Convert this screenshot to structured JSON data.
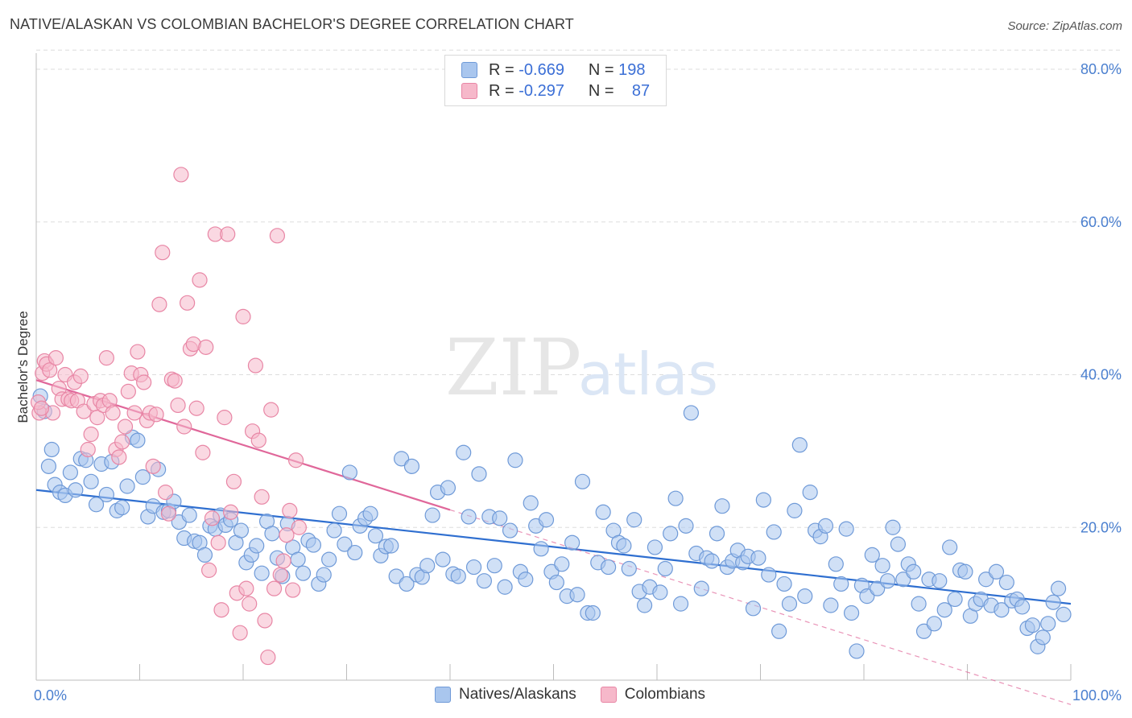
{
  "header": {
    "title": "NATIVE/ALASKAN VS COLOMBIAN BACHELOR'S DEGREE CORRELATION CHART",
    "source": "Source: ZipAtlas.com"
  },
  "watermark": {
    "zip": "ZIP",
    "atlas": "atlas"
  },
  "legend": {
    "rows": [
      {
        "r_label": "R =",
        "r_value": "-0.669",
        "n_label": "N =",
        "n_value": "198",
        "color": "#a9c6ee"
      },
      {
        "r_label": "R =",
        "r_value": "-0.297",
        "n_label": "N =",
        "n_value": "87",
        "color": "#f6b8ca"
      }
    ]
  },
  "bottom_legend": [
    {
      "label": "Natives/Alaskans",
      "color": "#a9c6ee"
    },
    {
      "label": "Colombians",
      "color": "#f6b8ca"
    }
  ],
  "chart_data": {
    "type": "scatter",
    "title": "NATIVE/ALASKAN VS COLOMBIAN BACHELOR'S DEGREE CORRELATION CHART",
    "xlabel": "",
    "ylabel": "Bachelor's Degree",
    "xlim": [
      0,
      100
    ],
    "ylim": [
      0,
      85
    ],
    "x_tick_labels": [
      "0.0%",
      "100.0%"
    ],
    "y_ticks": [
      20,
      40,
      60,
      80
    ],
    "y_tick_labels": [
      "20.0%",
      "40.0%",
      "60.0%",
      "80.0%"
    ],
    "grid": true,
    "legend_position": "top-center",
    "series": [
      {
        "name": "Natives/Alaskans",
        "color": "#a9c6ee",
        "stroke": "#6f9ad8",
        "trend": {
          "x": [
            0,
            100
          ],
          "y": [
            24.9,
            10.0
          ],
          "color": "#2f6fd0"
        },
        "points": [
          [
            1.2,
            28
          ],
          [
            1.8,
            25.6
          ],
          [
            2.3,
            24.6
          ],
          [
            2.8,
            24.2
          ],
          [
            3.3,
            27.2
          ],
          [
            3.8,
            24.9
          ],
          [
            4.3,
            29
          ],
          [
            4.8,
            28.8
          ],
          [
            5.3,
            26
          ],
          [
            5.8,
            23
          ],
          [
            6.3,
            28.3
          ],
          [
            6.8,
            24.3
          ],
          [
            7.3,
            28.6
          ],
          [
            7.8,
            22.2
          ],
          [
            8.3,
            22.6
          ],
          [
            8.8,
            25.4
          ],
          [
            9.3,
            31.8
          ],
          [
            9.8,
            31.4
          ],
          [
            10.3,
            26.6
          ],
          [
            10.8,
            21.4
          ],
          [
            11.3,
            22.8
          ],
          [
            11.8,
            27.6
          ],
          [
            12.3,
            22
          ],
          [
            12.8,
            22.2
          ],
          [
            13.3,
            23.4
          ],
          [
            13.8,
            20.7
          ],
          [
            14.3,
            18.6
          ],
          [
            14.8,
            21.6
          ],
          [
            15.3,
            18.2
          ],
          [
            15.8,
            18
          ],
          [
            16.3,
            16.4
          ],
          [
            16.8,
            20.2
          ],
          [
            17.3,
            19.8
          ],
          [
            17.8,
            21.6
          ],
          [
            18.3,
            20.3
          ],
          [
            18.8,
            21
          ],
          [
            19.3,
            18
          ],
          [
            19.8,
            19.6
          ],
          [
            20.3,
            15.4
          ],
          [
            20.8,
            16.4
          ],
          [
            21.3,
            17.6
          ],
          [
            21.8,
            14
          ],
          [
            22.3,
            20.8
          ],
          [
            22.8,
            19.2
          ],
          [
            23.3,
            16
          ],
          [
            23.8,
            13.6
          ],
          [
            24.3,
            20.5
          ],
          [
            24.8,
            17.4
          ],
          [
            25.3,
            15.8
          ],
          [
            25.8,
            14
          ],
          [
            26.3,
            18.3
          ],
          [
            26.8,
            17.7
          ],
          [
            27.3,
            12.6
          ],
          [
            27.8,
            13.8
          ],
          [
            28.3,
            15.8
          ],
          [
            28.8,
            19.6
          ],
          [
            29.3,
            21.8
          ],
          [
            29.8,
            17.8
          ],
          [
            30.3,
            27.2
          ],
          [
            30.8,
            16.7
          ],
          [
            31.3,
            20.2
          ],
          [
            31.8,
            21.2
          ],
          [
            32.3,
            21.8
          ],
          [
            32.8,
            18.9
          ],
          [
            33.3,
            16.3
          ],
          [
            33.8,
            17.5
          ],
          [
            34.3,
            17.6
          ],
          [
            34.8,
            13.6
          ],
          [
            35.3,
            29
          ],
          [
            35.8,
            12.6
          ],
          [
            36.3,
            28
          ],
          [
            36.8,
            13.8
          ],
          [
            37.3,
            13.5
          ],
          [
            37.8,
            15
          ],
          [
            38.3,
            21.6
          ],
          [
            38.8,
            24.6
          ],
          [
            39.3,
            15.8
          ],
          [
            39.8,
            25.2
          ],
          [
            40.3,
            13.9
          ],
          [
            40.8,
            13.6
          ],
          [
            41.3,
            29.8
          ],
          [
            41.8,
            21.4
          ],
          [
            42.3,
            14.8
          ],
          [
            42.8,
            27
          ],
          [
            43.3,
            13
          ],
          [
            43.8,
            21.4
          ],
          [
            44.3,
            15
          ],
          [
            44.8,
            21.2
          ],
          [
            45.3,
            12.2
          ],
          [
            45.8,
            19.6
          ],
          [
            46.3,
            28.8
          ],
          [
            46.8,
            14.2
          ],
          [
            47.3,
            13.2
          ],
          [
            47.8,
            23.2
          ],
          [
            48.3,
            20.2
          ],
          [
            48.8,
            17.2
          ],
          [
            49.3,
            21
          ],
          [
            49.8,
            14.2
          ],
          [
            50.3,
            12.8
          ],
          [
            50.8,
            15.2
          ],
          [
            51.3,
            11
          ],
          [
            51.8,
            18
          ],
          [
            52.3,
            11.2
          ],
          [
            52.8,
            26
          ],
          [
            53.3,
            8.8
          ],
          [
            53.8,
            8.8
          ],
          [
            54.3,
            15.4
          ],
          [
            54.8,
            22
          ],
          [
            55.3,
            14.8
          ],
          [
            55.8,
            19.6
          ],
          [
            56.3,
            18
          ],
          [
            56.8,
            17.6
          ],
          [
            57.3,
            14.6
          ],
          [
            57.8,
            21
          ],
          [
            58.3,
            11.6
          ],
          [
            58.8,
            9.8
          ],
          [
            59.3,
            12.2
          ],
          [
            59.8,
            17.4
          ],
          [
            60.3,
            11.5
          ],
          [
            60.8,
            14.6
          ],
          [
            61.3,
            19.2
          ],
          [
            61.8,
            23.8
          ],
          [
            62.3,
            10
          ],
          [
            62.8,
            20.2
          ],
          [
            63.3,
            35
          ],
          [
            63.8,
            16.6
          ],
          [
            64.3,
            12
          ],
          [
            64.8,
            16
          ],
          [
            65.3,
            15.6
          ],
          [
            65.8,
            19.2
          ],
          [
            66.3,
            22.8
          ],
          [
            66.8,
            14.8
          ],
          [
            67.3,
            15.6
          ],
          [
            67.8,
            17
          ],
          [
            68.3,
            15.4
          ],
          [
            68.8,
            16.2
          ],
          [
            69.3,
            9.4
          ],
          [
            69.8,
            16
          ],
          [
            70.3,
            23.6
          ],
          [
            70.8,
            13.8
          ],
          [
            71.3,
            19.4
          ],
          [
            71.8,
            6.4
          ],
          [
            72.3,
            12.6
          ],
          [
            72.8,
            10
          ],
          [
            73.3,
            22.2
          ],
          [
            73.8,
            30.8
          ],
          [
            74.3,
            11
          ],
          [
            74.8,
            24.6
          ],
          [
            75.3,
            19.6
          ],
          [
            75.8,
            18.8
          ],
          [
            76.3,
            20.2
          ],
          [
            76.8,
            9.8
          ],
          [
            77.3,
            15.2
          ],
          [
            77.8,
            12.6
          ],
          [
            78.3,
            19.8
          ],
          [
            78.8,
            8.8
          ],
          [
            79.3,
            3.8
          ],
          [
            79.8,
            12.4
          ],
          [
            80.3,
            11
          ],
          [
            80.8,
            16.4
          ],
          [
            81.3,
            12
          ],
          [
            81.8,
            15
          ],
          [
            82.3,
            13
          ],
          [
            82.8,
            20
          ],
          [
            83.3,
            17.8
          ],
          [
            83.8,
            13.2
          ],
          [
            84.3,
            15.2
          ],
          [
            84.8,
            14.2
          ],
          [
            85.3,
            10
          ],
          [
            85.8,
            6.4
          ],
          [
            86.3,
            13.2
          ],
          [
            86.8,
            7.4
          ],
          [
            87.3,
            13
          ],
          [
            87.8,
            9.2
          ],
          [
            88.3,
            17.4
          ],
          [
            88.8,
            10.6
          ],
          [
            89.3,
            14.4
          ],
          [
            89.8,
            14.2
          ],
          [
            90.3,
            8.4
          ],
          [
            90.8,
            10
          ],
          [
            91.3,
            10.6
          ],
          [
            91.8,
            13.2
          ],
          [
            92.3,
            9.8
          ],
          [
            92.8,
            14.2
          ],
          [
            93.3,
            9.2
          ],
          [
            93.8,
            12.8
          ],
          [
            94.3,
            10.4
          ],
          [
            94.8,
            10.6
          ],
          [
            95.3,
            9.6
          ],
          [
            95.8,
            6.8
          ],
          [
            96.3,
            7.2
          ],
          [
            96.8,
            4.4
          ],
          [
            97.3,
            5.6
          ],
          [
            97.8,
            7.4
          ],
          [
            98.3,
            10.2
          ],
          [
            98.8,
            12
          ],
          [
            99.3,
            8.6
          ],
          [
            0.4,
            37.2
          ],
          [
            0.8,
            35.2
          ],
          [
            1.5,
            30.2
          ]
        ]
      },
      {
        "name": "Colombians",
        "color": "#f6b8ca",
        "stroke": "#e886a5",
        "trend": {
          "x": [
            0,
            40
          ],
          "y": [
            39.3,
            22.3
          ],
          "color": "#e0679a"
        },
        "trend_ext": {
          "x": [
            40,
            100
          ],
          "y": [
            22.3,
            -3.2
          ]
        },
        "points": [
          [
            0.3,
            35
          ],
          [
            0.6,
            40.2
          ],
          [
            0.8,
            41.8
          ],
          [
            1.0,
            41.4
          ],
          [
            1.3,
            40.6
          ],
          [
            1.6,
            35
          ],
          [
            1.9,
            42.2
          ],
          [
            2.2,
            38.2
          ],
          [
            2.5,
            36.8
          ],
          [
            2.8,
            40
          ],
          [
            3.1,
            36.8
          ],
          [
            3.4,
            36.6
          ],
          [
            3.7,
            39
          ],
          [
            4.0,
            36.6
          ],
          [
            4.3,
            39.8
          ],
          [
            4.6,
            35.2
          ],
          [
            5.0,
            30.2
          ],
          [
            5.3,
            32.2
          ],
          [
            5.6,
            36.2
          ],
          [
            5.9,
            34.4
          ],
          [
            6.2,
            36.6
          ],
          [
            6.5,
            36
          ],
          [
            6.8,
            42.2
          ],
          [
            7.1,
            36.6
          ],
          [
            7.4,
            35
          ],
          [
            7.7,
            30.2
          ],
          [
            8.0,
            29.2
          ],
          [
            8.3,
            31.2
          ],
          [
            8.6,
            33.2
          ],
          [
            8.9,
            37.8
          ],
          [
            9.2,
            40.2
          ],
          [
            9.5,
            35
          ],
          [
            9.8,
            43
          ],
          [
            10.1,
            40
          ],
          [
            10.4,
            39
          ],
          [
            10.7,
            34
          ],
          [
            11.0,
            35
          ],
          [
            11.3,
            28
          ],
          [
            11.6,
            34.8
          ],
          [
            11.9,
            49.2
          ],
          [
            12.2,
            56
          ],
          [
            12.5,
            24.6
          ],
          [
            12.8,
            21.8
          ],
          [
            13.1,
            39.4
          ],
          [
            13.4,
            39.2
          ],
          [
            13.7,
            36
          ],
          [
            14.0,
            66.2
          ],
          [
            14.3,
            33.2
          ],
          [
            14.6,
            49.4
          ],
          [
            14.9,
            43.4
          ],
          [
            15.2,
            44
          ],
          [
            15.5,
            35.6
          ],
          [
            15.8,
            52.4
          ],
          [
            16.1,
            29.8
          ],
          [
            16.4,
            43.6
          ],
          [
            16.7,
            14.4
          ],
          [
            17.0,
            21.2
          ],
          [
            17.3,
            58.4
          ],
          [
            17.6,
            18
          ],
          [
            17.9,
            9.2
          ],
          [
            18.2,
            34.4
          ],
          [
            18.5,
            58.4
          ],
          [
            18.8,
            22
          ],
          [
            19.1,
            26
          ],
          [
            19.4,
            11.4
          ],
          [
            19.7,
            6.2
          ],
          [
            20.0,
            47.6
          ],
          [
            20.3,
            12
          ],
          [
            20.6,
            10
          ],
          [
            20.9,
            32.6
          ],
          [
            21.2,
            41.2
          ],
          [
            21.5,
            31.4
          ],
          [
            21.8,
            24
          ],
          [
            22.1,
            7.8
          ],
          [
            22.4,
            3
          ],
          [
            22.7,
            35.4
          ],
          [
            23.0,
            12
          ],
          [
            23.3,
            58.2
          ],
          [
            23.6,
            13.8
          ],
          [
            23.9,
            15.6
          ],
          [
            24.2,
            19
          ],
          [
            24.5,
            22.2
          ],
          [
            24.8,
            11.8
          ],
          [
            25.1,
            28.8
          ],
          [
            25.4,
            20
          ],
          [
            0.2,
            36.4
          ],
          [
            0.5,
            35.6
          ]
        ]
      }
    ]
  }
}
